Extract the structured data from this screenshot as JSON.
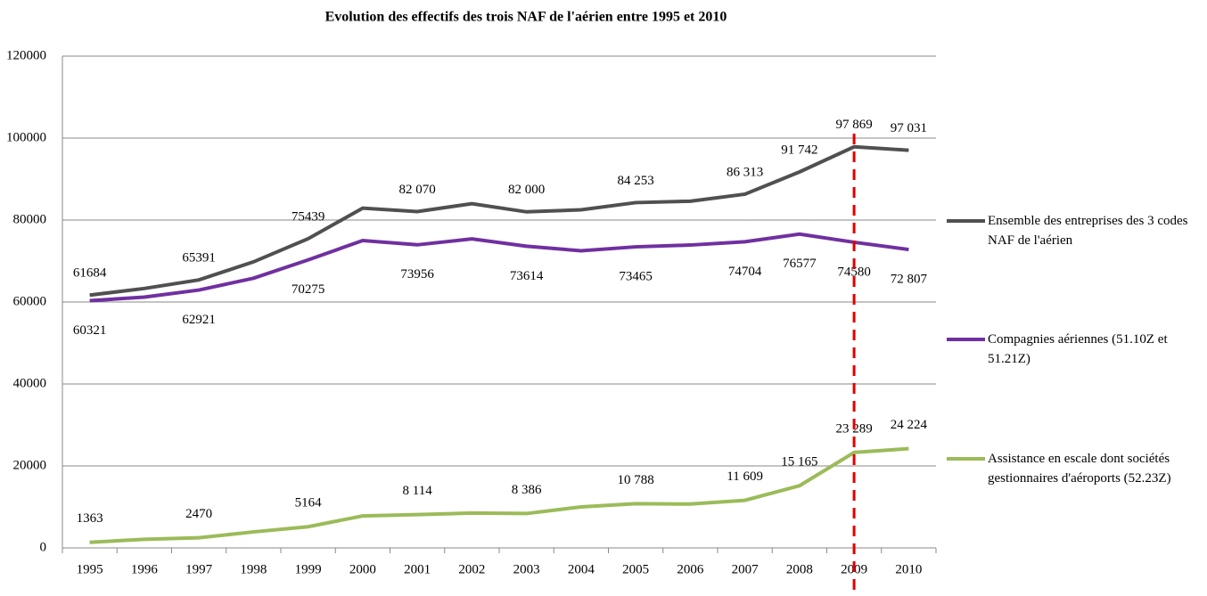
{
  "chart_data": {
    "type": "line",
    "title": "Evolution  des effectifs des trois  NAF de l'aérien entre 1995 et 2010",
    "categories": [
      "1995",
      "1996",
      "1997",
      "1998",
      "1999",
      "2000",
      "2001",
      "2002",
      "2003",
      "2004",
      "2005",
      "2006",
      "2007",
      "2008",
      "2009",
      "2010"
    ],
    "ylim": [
      0,
      120000
    ],
    "yticks": [
      0,
      20000,
      40000,
      60000,
      80000,
      100000,
      120000
    ],
    "grid": true,
    "legend": "right",
    "series": [
      {
        "name": "Ensemble des entreprises des 3 codes NAF de l'aérien",
        "color": "#505050",
        "values": [
          61684,
          63300,
          65391,
          69800,
          75439,
          82900,
          82070,
          84000,
          82000,
          82500,
          84253,
          84600,
          86313,
          91742,
          97869,
          97031
        ],
        "value_labels": [
          "61684",
          null,
          "65391",
          null,
          "75439",
          null,
          "82 070",
          null,
          "82 000",
          null,
          "84 253",
          null,
          "86 313",
          "91 742",
          "97 869",
          "97 031"
        ]
      },
      {
        "name": "Compagnies aériennes (51.10Z et 51.21Z)",
        "color": "#7030a0",
        "values": [
          60321,
          61200,
          62921,
          65800,
          70275,
          75000,
          73956,
          75400,
          73614,
          72500,
          73465,
          73900,
          74704,
          76577,
          74580,
          72807
        ],
        "value_labels": [
          "60321",
          null,
          "62921",
          null,
          "70275",
          null,
          "73956",
          null,
          "73614",
          null,
          "73465",
          null,
          "74704",
          "76577",
          "74580",
          "72 807"
        ]
      },
      {
        "name": "Assistance en escale dont sociétés gestionnaires d'aéroports (52.23Z)",
        "color": "#9bbb59",
        "values": [
          1363,
          2100,
          2470,
          3900,
          5164,
          7800,
          8114,
          8500,
          8386,
          10000,
          10788,
          10700,
          11609,
          15165,
          23289,
          24224
        ],
        "value_labels": [
          "1363",
          null,
          "2470",
          null,
          "5164",
          null,
          "8 114",
          null,
          "8 386",
          null,
          "10 788",
          null,
          "11 609",
          "15 165",
          "23 289",
          "24 224"
        ]
      }
    ]
  }
}
